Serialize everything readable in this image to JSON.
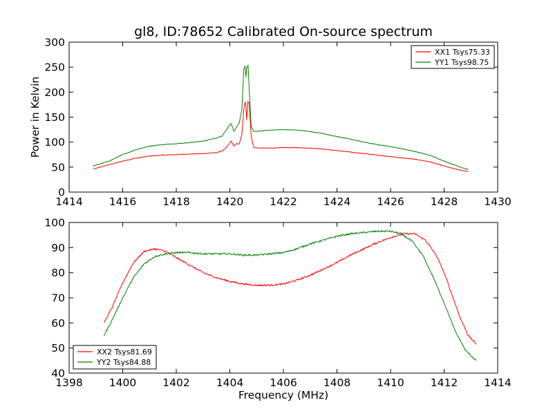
{
  "figure": {
    "title": "gl8, ID:78652 Calibrated On-source spectrum",
    "xlabel": "Frequency (MHz)",
    "top_ylabel": "Power in Kelvin"
  },
  "chart_data": [
    {
      "type": "line",
      "title": "gl8, ID:78652 Calibrated On-source spectrum",
      "xlabel": "",
      "ylabel": "Power in Kelvin",
      "xlim": [
        1414,
        1430
      ],
      "ylim": [
        0,
        300
      ],
      "xticks": [
        1414,
        1416,
        1418,
        1420,
        1422,
        1424,
        1426,
        1428,
        1430
      ],
      "yticks": [
        0,
        50,
        100,
        150,
        200,
        250,
        300
      ],
      "grid": false,
      "legend_position": "top-right",
      "series": [
        {
          "name": "XX1 Tsys75.33",
          "color": "#ff0000",
          "points": [
            [
              1414.9,
              46
            ],
            [
              1415.5,
              55
            ],
            [
              1416,
              62
            ],
            [
              1416.5,
              68
            ],
            [
              1417,
              72
            ],
            [
              1417.5,
              74
            ],
            [
              1418,
              75
            ],
            [
              1418.5,
              76
            ],
            [
              1419,
              77
            ],
            [
              1419.5,
              79
            ],
            [
              1419.7,
              82
            ],
            [
              1419.85,
              88
            ],
            [
              1419.95,
              95
            ],
            [
              1420.05,
              102
            ],
            [
              1420.15,
              92
            ],
            [
              1420.25,
              97
            ],
            [
              1420.35,
              96
            ],
            [
              1420.45,
              115
            ],
            [
              1420.52,
              165
            ],
            [
              1420.57,
              180
            ],
            [
              1420.6,
              172
            ],
            [
              1420.63,
              145
            ],
            [
              1420.67,
              182
            ],
            [
              1420.72,
              178
            ],
            [
              1420.8,
              110
            ],
            [
              1420.9,
              89
            ],
            [
              1421.1,
              88
            ],
            [
              1421.5,
              88
            ],
            [
              1422,
              89
            ],
            [
              1422.5,
              89
            ],
            [
              1423,
              88
            ],
            [
              1423.5,
              86
            ],
            [
              1424,
              83
            ],
            [
              1424.5,
              80
            ],
            [
              1425,
              77
            ],
            [
              1425.5,
              74
            ],
            [
              1426,
              71
            ],
            [
              1426.5,
              68
            ],
            [
              1427,
              65
            ],
            [
              1427.5,
              60
            ],
            [
              1428,
              52
            ],
            [
              1428.5,
              45
            ],
            [
              1428.9,
              41
            ]
          ]
        },
        {
          "name": "YY1 Tsys98.75",
          "color": "#008000",
          "points": [
            [
              1414.9,
              52
            ],
            [
              1415.5,
              62
            ],
            [
              1416,
              75
            ],
            [
              1416.5,
              85
            ],
            [
              1417,
              92
            ],
            [
              1417.5,
              95
            ],
            [
              1418,
              97
            ],
            [
              1418.5,
              99
            ],
            [
              1419,
              102
            ],
            [
              1419.5,
              108
            ],
            [
              1419.7,
              112
            ],
            [
              1419.85,
              122
            ],
            [
              1419.95,
              132
            ],
            [
              1420.05,
              137
            ],
            [
              1420.15,
              122
            ],
            [
              1420.25,
              130
            ],
            [
              1420.35,
              138
            ],
            [
              1420.45,
              165
            ],
            [
              1420.52,
              245
            ],
            [
              1420.57,
              252
            ],
            [
              1420.6,
              230
            ],
            [
              1420.63,
              248
            ],
            [
              1420.68,
              254
            ],
            [
              1420.73,
              200
            ],
            [
              1420.8,
              130
            ],
            [
              1420.9,
              121
            ],
            [
              1421.1,
              122
            ],
            [
              1421.5,
              124
            ],
            [
              1422,
              125
            ],
            [
              1422.5,
              124
            ],
            [
              1423,
              121
            ],
            [
              1423.5,
              117
            ],
            [
              1424,
              111
            ],
            [
              1424.5,
              106
            ],
            [
              1425,
              100
            ],
            [
              1425.5,
              95
            ],
            [
              1426,
              91
            ],
            [
              1426.5,
              86
            ],
            [
              1427,
              80
            ],
            [
              1427.5,
              73
            ],
            [
              1428,
              62
            ],
            [
              1428.5,
              52
            ],
            [
              1428.9,
              45
            ]
          ]
        }
      ]
    },
    {
      "type": "line",
      "title": "",
      "xlabel": "Frequency (MHz)",
      "ylabel": "",
      "xlim": [
        1398,
        1414
      ],
      "ylim": [
        40,
        100
      ],
      "xticks": [
        1398,
        1400,
        1402,
        1404,
        1406,
        1408,
        1410,
        1412,
        1414
      ],
      "yticks": [
        40,
        50,
        60,
        70,
        80,
        90,
        100
      ],
      "grid": false,
      "legend_position": "bottom-left",
      "series": [
        {
          "name": "XX2 Tsys81.69",
          "color": "#ff0000",
          "points": [
            [
              1399.3,
              60
            ],
            [
              1399.6,
              66
            ],
            [
              1400,
              76
            ],
            [
              1400.4,
              84
            ],
            [
              1400.8,
              88.5
            ],
            [
              1401.2,
              89.5
            ],
            [
              1401.6,
              88.5
            ],
            [
              1402,
              86
            ],
            [
              1402.5,
              83
            ],
            [
              1403,
              80
            ],
            [
              1403.5,
              78
            ],
            [
              1404,
              76.5
            ],
            [
              1404.5,
              75.5
            ],
            [
              1405,
              75
            ],
            [
              1405.5,
              75
            ],
            [
              1406,
              75.5
            ],
            [
              1406.5,
              77
            ],
            [
              1407,
              79
            ],
            [
              1407.5,
              81.5
            ],
            [
              1408,
              84
            ],
            [
              1408.5,
              87
            ],
            [
              1409,
              89.5
            ],
            [
              1409.5,
              92
            ],
            [
              1410,
              94
            ],
            [
              1410.5,
              95.5
            ],
            [
              1410.9,
              95.5
            ],
            [
              1411.3,
              93
            ],
            [
              1411.7,
              87
            ],
            [
              1412,
              80
            ],
            [
              1412.3,
              71
            ],
            [
              1412.6,
              62
            ],
            [
              1412.9,
              55
            ],
            [
              1413.2,
              51.5
            ]
          ]
        },
        {
          "name": "YY2 Tsys84.88",
          "color": "#008000",
          "points": [
            [
              1399.3,
              55
            ],
            [
              1399.6,
              61
            ],
            [
              1400,
              70
            ],
            [
              1400.4,
              78
            ],
            [
              1400.8,
              83.5
            ],
            [
              1401.2,
              86.5
            ],
            [
              1401.6,
              87.5
            ],
            [
              1402,
              88
            ],
            [
              1402.5,
              88
            ],
            [
              1403,
              87.5
            ],
            [
              1403.5,
              87.5
            ],
            [
              1404,
              87.5
            ],
            [
              1404.5,
              87
            ],
            [
              1405,
              87
            ],
            [
              1405.5,
              87.5
            ],
            [
              1406,
              88
            ],
            [
              1406.5,
              89.5
            ],
            [
              1407,
              91.5
            ],
            [
              1407.5,
              93
            ],
            [
              1408,
              94.5
            ],
            [
              1408.5,
              95.5
            ],
            [
              1409,
              96
            ],
            [
              1409.5,
              96.5
            ],
            [
              1410,
              96.5
            ],
            [
              1410.4,
              95.5
            ],
            [
              1410.8,
              92.5
            ],
            [
              1411.2,
              87
            ],
            [
              1411.6,
              78
            ],
            [
              1412,
              68
            ],
            [
              1412.4,
              57
            ],
            [
              1412.8,
              49
            ],
            [
              1413.2,
              45
            ]
          ]
        }
      ]
    }
  ]
}
